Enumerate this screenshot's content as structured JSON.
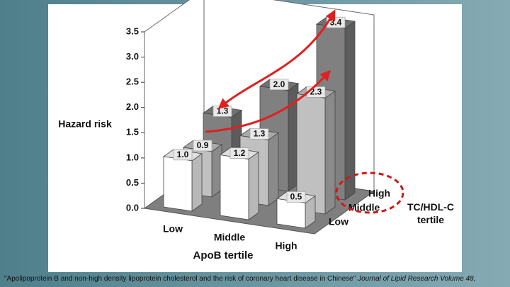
{
  "chart_data": {
    "type": "bar3d",
    "y_label": "Hazard risk",
    "x_label": "ApoB tertile",
    "z_label": "TC/HDL-C tertile",
    "categories": [
      "Low",
      "Middle",
      "High"
    ],
    "series": [
      {
        "name": "Low",
        "color": "#ffffff",
        "values": [
          1,
          1.2,
          0.5
        ],
        "value_labels": [
          "1.0",
          "1.2",
          "0.5"
        ]
      },
      {
        "name": "Middle",
        "color": "#c0c0c0",
        "values": [
          0.9,
          1.3,
          2.3
        ],
        "value_labels": [
          "0.9",
          "1.3",
          "2.3"
        ]
      },
      {
        "name": "High",
        "color": "#808080",
        "values": [
          1.3,
          2,
          3.4
        ],
        "value_labels": [
          "1.3",
          "2.0",
          "3.4"
        ]
      }
    ],
    "ylim": [
      0,
      3.5
    ],
    "yticks": [
      {
        "value": 0,
        "label": "0.0"
      },
      0.5,
      {
        "value": 1,
        "label": "1.0"
      },
      1.5,
      {
        "value": 2,
        "label": "2.0"
      },
      2.5,
      {
        "value": 3,
        "label": "3.0"
      },
      3.5
    ]
  },
  "citation": {
    "article": "\"Apolipoprotein B and non-high density lipoprotein cholesterol and the risk of coronary heart disease in Chinese\"",
    "journal": "Journal of Lipid Research Volume 48,"
  }
}
